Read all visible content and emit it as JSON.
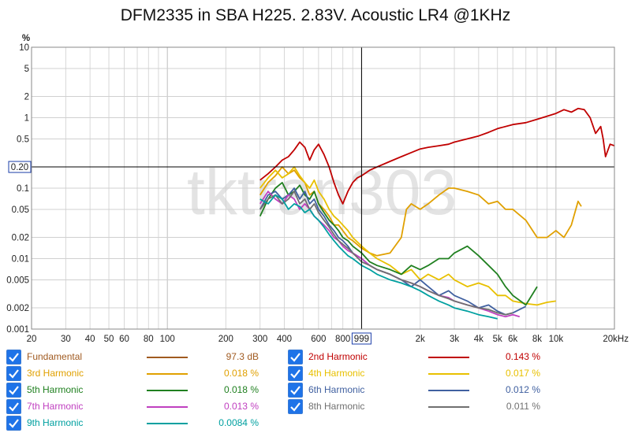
{
  "chart_data": {
    "type": "line",
    "title": "DFM2335 in SBA H225. 2.83V. Acoustic LR4 @1KHz",
    "y_unit": "%",
    "x_scale": "log",
    "y_scale": "log",
    "xlim": [
      20,
      20000
    ],
    "ylim": [
      0.001,
      10
    ],
    "x_ticks": [
      {
        "v": 20,
        "label": "20"
      },
      {
        "v": 30,
        "label": "30"
      },
      {
        "v": 40,
        "label": "40"
      },
      {
        "v": 50,
        "label": "50"
      },
      {
        "v": 60,
        "label": "60"
      },
      {
        "v": 80,
        "label": "80"
      },
      {
        "v": 100,
        "label": "100"
      },
      {
        "v": 200,
        "label": "200"
      },
      {
        "v": 300,
        "label": "300"
      },
      {
        "v": 400,
        "label": "400"
      },
      {
        "v": 600,
        "label": "600"
      },
      {
        "v": 800,
        "label": "800"
      },
      {
        "v": 2000,
        "label": "2k"
      },
      {
        "v": 3000,
        "label": "3k"
      },
      {
        "v": 4000,
        "label": "4k"
      },
      {
        "v": 5000,
        "label": "5k"
      },
      {
        "v": 6000,
        "label": "6k"
      },
      {
        "v": 8000,
        "label": "8k"
      },
      {
        "v": 10000,
        "label": "10k"
      },
      {
        "v": 20000,
        "label": "20kHz"
      }
    ],
    "y_ticks": [
      {
        "v": 10,
        "label": "10"
      },
      {
        "v": 5,
        "label": "5"
      },
      {
        "v": 2,
        "label": "2"
      },
      {
        "v": 1,
        "label": "1"
      },
      {
        "v": 0.5,
        "label": "0.5"
      },
      {
        "v": 0.1,
        "label": "0.1"
      },
      {
        "v": 0.05,
        "label": "0.05"
      },
      {
        "v": 0.02,
        "label": "0.02"
      },
      {
        "v": 0.01,
        "label": "0.01"
      },
      {
        "v": 0.005,
        "label": "0.005"
      },
      {
        "v": 0.002,
        "label": "0.002"
      },
      {
        "v": 0.001,
        "label": "0.001"
      }
    ],
    "cursor": {
      "x": 999,
      "y": 0.2,
      "x_label": "999",
      "y_label": "0.20"
    },
    "watermark": "tktran303",
    "grid": true,
    "series": [
      {
        "name": "2nd Harmonic",
        "color": "#c00000",
        "legend_value": "0.143 %",
        "x": [
          300,
          330,
          360,
          390,
          420,
          450,
          480,
          510,
          540,
          570,
          600,
          640,
          680,
          720,
          760,
          800,
          850,
          900,
          950,
          999,
          1100,
          1200,
          1400,
          1600,
          1800,
          2000,
          2200,
          2500,
          2800,
          3000,
          3500,
          4000,
          4500,
          5000,
          6000,
          7000,
          8000,
          9000,
          10000,
          11000,
          12000,
          13000,
          14000,
          15000,
          16000,
          17000,
          17500,
          18000,
          19000,
          20000
        ],
        "y": [
          0.13,
          0.16,
          0.2,
          0.25,
          0.28,
          0.35,
          0.45,
          0.38,
          0.25,
          0.35,
          0.42,
          0.3,
          0.2,
          0.12,
          0.08,
          0.06,
          0.09,
          0.12,
          0.14,
          0.15,
          0.18,
          0.2,
          0.24,
          0.28,
          0.32,
          0.36,
          0.38,
          0.4,
          0.42,
          0.45,
          0.5,
          0.55,
          0.62,
          0.7,
          0.8,
          0.85,
          0.95,
          1.05,
          1.15,
          1.3,
          1.2,
          1.35,
          1.3,
          1.0,
          0.6,
          0.75,
          0.5,
          0.28,
          0.42,
          0.4
        ]
      },
      {
        "name": "3rd Harmonic",
        "color": "#e0a000",
        "legend_value": "0.018 %",
        "x": [
          300,
          330,
          360,
          390,
          420,
          450,
          480,
          510,
          540,
          570,
          600,
          640,
          680,
          720,
          760,
          800,
          850,
          900,
          1000,
          1100,
          1200,
          1400,
          1600,
          1700,
          1800,
          2000,
          2200,
          2500,
          2800,
          3000,
          3500,
          4000,
          4500,
          5000,
          5500,
          6000,
          7000,
          8000,
          9000,
          10000,
          11000,
          12000,
          13000,
          13500
        ],
        "y": [
          0.08,
          0.12,
          0.15,
          0.2,
          0.16,
          0.18,
          0.14,
          0.12,
          0.08,
          0.09,
          0.06,
          0.05,
          0.04,
          0.03,
          0.03,
          0.025,
          0.02,
          0.018,
          0.014,
          0.012,
          0.011,
          0.012,
          0.02,
          0.05,
          0.06,
          0.05,
          0.06,
          0.08,
          0.1,
          0.1,
          0.09,
          0.08,
          0.06,
          0.065,
          0.05,
          0.05,
          0.035,
          0.02,
          0.02,
          0.025,
          0.02,
          0.03,
          0.065,
          0.055
        ]
      },
      {
        "name": "4th Harmonic",
        "color": "#e8c000",
        "legend_value": "0.017 %",
        "x": [
          300,
          330,
          360,
          390,
          420,
          450,
          480,
          510,
          540,
          570,
          600,
          640,
          680,
          720,
          760,
          800,
          850,
          900,
          1000,
          1100,
          1200,
          1400,
          1600,
          1800,
          2000,
          2200,
          2500,
          2800,
          3000,
          3500,
          4000,
          4500,
          5000,
          5500,
          6000,
          7000,
          8000,
          9000,
          10000
        ],
        "y": [
          0.1,
          0.14,
          0.18,
          0.14,
          0.16,
          0.2,
          0.15,
          0.12,
          0.1,
          0.13,
          0.09,
          0.07,
          0.05,
          0.04,
          0.035,
          0.03,
          0.025,
          0.02,
          0.015,
          0.012,
          0.01,
          0.008,
          0.006,
          0.007,
          0.005,
          0.006,
          0.005,
          0.006,
          0.005,
          0.004,
          0.0045,
          0.004,
          0.003,
          0.003,
          0.0025,
          0.0023,
          0.0022,
          0.0024,
          0.0025
        ]
      },
      {
        "name": "5th Harmonic",
        "color": "#208020",
        "legend_value": "0.018 %",
        "x": [
          300,
          330,
          360,
          390,
          420,
          450,
          480,
          510,
          540,
          570,
          600,
          640,
          680,
          720,
          760,
          800,
          850,
          900,
          1000,
          1100,
          1200,
          1400,
          1600,
          1800,
          2000,
          2200,
          2500,
          2800,
          3000,
          3500,
          4000,
          4500,
          5000,
          5500,
          6000,
          7000,
          8000
        ],
        "y": [
          0.04,
          0.07,
          0.1,
          0.12,
          0.08,
          0.09,
          0.11,
          0.08,
          0.07,
          0.09,
          0.06,
          0.045,
          0.035,
          0.03,
          0.025,
          0.02,
          0.018,
          0.015,
          0.012,
          0.009,
          0.008,
          0.007,
          0.006,
          0.008,
          0.007,
          0.008,
          0.01,
          0.01,
          0.012,
          0.015,
          0.011,
          0.008,
          0.006,
          0.004,
          0.003,
          0.0022,
          0.004
        ]
      },
      {
        "name": "6th Harmonic",
        "color": "#4060a0",
        "legend_value": "0.012 %",
        "x": [
          300,
          330,
          360,
          390,
          420,
          450,
          480,
          510,
          540,
          570,
          600,
          640,
          680,
          720,
          760,
          800,
          850,
          900,
          1000,
          1100,
          1200,
          1400,
          1600,
          1800,
          2000,
          2200,
          2500,
          2800,
          3000,
          3500,
          4000,
          4500,
          5000,
          5500,
          6000,
          6500,
          7000
        ],
        "y": [
          0.05,
          0.08,
          0.09,
          0.07,
          0.08,
          0.1,
          0.07,
          0.09,
          0.06,
          0.07,
          0.05,
          0.04,
          0.03,
          0.025,
          0.02,
          0.018,
          0.015,
          0.012,
          0.01,
          0.008,
          0.007,
          0.006,
          0.005,
          0.004,
          0.005,
          0.004,
          0.003,
          0.0035,
          0.003,
          0.0025,
          0.002,
          0.0022,
          0.0018,
          0.0016,
          0.0017,
          0.0019,
          0.0021
        ]
      },
      {
        "name": "7th Harmonic",
        "color": "#c040c0",
        "legend_value": "0.013 %",
        "x": [
          300,
          330,
          360,
          390,
          420,
          450,
          480,
          510,
          540,
          570,
          600,
          640,
          680,
          720,
          760,
          800,
          850,
          900,
          1000,
          1100,
          1200,
          1400,
          1600,
          1800,
          2000,
          2200,
          2500,
          2800,
          3000,
          3500,
          4000,
          4500,
          5000,
          5500,
          6000,
          6500
        ],
        "y": [
          0.06,
          0.09,
          0.07,
          0.06,
          0.08,
          0.07,
          0.05,
          0.06,
          0.05,
          0.04,
          0.035,
          0.03,
          0.025,
          0.02,
          0.018,
          0.015,
          0.013,
          0.012,
          0.01,
          0.008,
          0.007,
          0.006,
          0.005,
          0.0045,
          0.004,
          0.0035,
          0.003,
          0.0028,
          0.0025,
          0.0022,
          0.002,
          0.0018,
          0.0016,
          0.0015,
          0.0016,
          0.0015
        ]
      },
      {
        "name": "8th Harmonic",
        "color": "#707070",
        "legend_value": "0.011 %",
        "x": [
          300,
          330,
          360,
          390,
          420,
          450,
          480,
          510,
          540,
          570,
          600,
          640,
          680,
          720,
          760,
          800,
          850,
          900,
          1000,
          1100,
          1200,
          1400,
          1600,
          1800,
          2000,
          2200,
          2500,
          2800,
          3000,
          3500,
          4000,
          4500,
          5000,
          5500,
          6000
        ],
        "y": [
          0.05,
          0.07,
          0.08,
          0.06,
          0.07,
          0.09,
          0.06,
          0.07,
          0.05,
          0.06,
          0.045,
          0.035,
          0.028,
          0.022,
          0.018,
          0.016,
          0.014,
          0.012,
          0.009,
          0.008,
          0.007,
          0.006,
          0.005,
          0.0045,
          0.004,
          0.0035,
          0.003,
          0.0027,
          0.0025,
          0.0022,
          0.002,
          0.0019,
          0.0017,
          0.0016,
          0.0017
        ]
      },
      {
        "name": "9th Harmonic",
        "color": "#00a0a0",
        "legend_value": "0.0084 %",
        "x": [
          300,
          330,
          360,
          390,
          420,
          450,
          480,
          510,
          540,
          570,
          600,
          640,
          680,
          720,
          760,
          800,
          850,
          900,
          1000,
          1100,
          1200,
          1400,
          1600,
          1800,
          2000,
          2200,
          2500,
          2800,
          3000,
          3500,
          4000,
          4500,
          5000
        ],
        "y": [
          0.07,
          0.06,
          0.08,
          0.07,
          0.05,
          0.06,
          0.055,
          0.045,
          0.05,
          0.04,
          0.035,
          0.028,
          0.022,
          0.018,
          0.015,
          0.013,
          0.011,
          0.01,
          0.008,
          0.007,
          0.006,
          0.005,
          0.0045,
          0.004,
          0.0035,
          0.003,
          0.0025,
          0.0022,
          0.002,
          0.0018,
          0.0016,
          0.0015,
          0.0014
        ]
      }
    ]
  },
  "legend": [
    {
      "name": "Fundamental",
      "color": "#a05a20",
      "value": "97.3 dB",
      "col": 0,
      "row": 0
    },
    {
      "name": "3rd Harmonic",
      "color": "#e0a000",
      "value": "0.018 %",
      "col": 0,
      "row": 1
    },
    {
      "name": "5th Harmonic",
      "color": "#208020",
      "value": "0.018 %",
      "col": 0,
      "row": 2
    },
    {
      "name": "7th Harmonic",
      "color": "#c040c0",
      "value": "0.013 %",
      "col": 0,
      "row": 3
    },
    {
      "name": "9th Harmonic",
      "color": "#00a0a0",
      "value": "0.0084 %",
      "col": 0,
      "row": 4
    },
    {
      "name": "2nd Harmonic",
      "color": "#c00000",
      "value": "0.143 %",
      "col": 1,
      "row": 0
    },
    {
      "name": "4th Harmonic",
      "color": "#e8c000",
      "value": "0.017 %",
      "col": 1,
      "row": 1
    },
    {
      "name": "6th Harmonic",
      "color": "#4060a0",
      "value": "0.012 %",
      "col": 1,
      "row": 2
    },
    {
      "name": "8th Harmonic",
      "color": "#707070",
      "value": "0.011 %",
      "col": 1,
      "row": 3
    }
  ]
}
